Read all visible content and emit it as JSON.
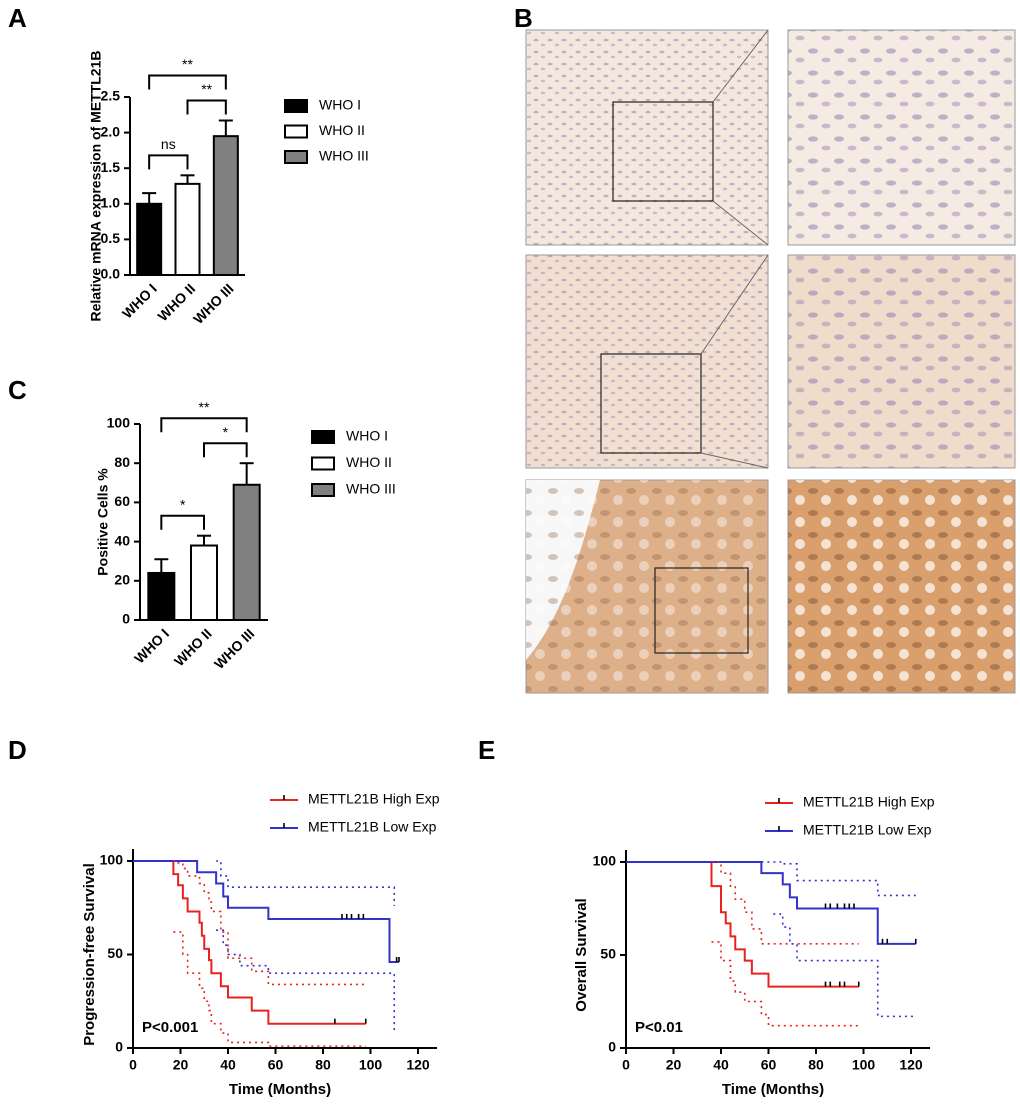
{
  "image_panel": {
    "label": "B"
  },
  "chart_data": [
    {
      "type": "bar",
      "panel": "A",
      "ylabel": "Relative mRNA expression of METTL21B",
      "categories": [
        "WHO I",
        "WHO II",
        "WHO III"
      ],
      "values": [
        1.0,
        1.28,
        1.95
      ],
      "errors": [
        0.15,
        0.12,
        0.22
      ],
      "colors": [
        "#000000",
        "#ffffff",
        "#808080"
      ],
      "ylim": [
        0,
        2.5
      ],
      "yticks": [
        {
          "value": 0,
          "label": "0.0"
        },
        0.5,
        {
          "value": 1,
          "label": "1.0"
        },
        1.5,
        {
          "value": 2,
          "label": "2.0"
        },
        2.5
      ],
      "comparisons": [
        {
          "groups": [
            0,
            1
          ],
          "label": "ns"
        },
        {
          "groups": [
            1,
            2
          ],
          "label": "**"
        },
        {
          "groups": [
            0,
            2
          ],
          "label": "**"
        }
      ]
    },
    {
      "type": "bar",
      "panel": "C",
      "ylabel": "Positive Cells %",
      "categories": [
        "WHO I",
        "WHO II",
        "WHO III"
      ],
      "values": [
        24,
        38,
        69
      ],
      "errors": [
        7,
        5,
        11
      ],
      "colors": [
        "#000000",
        "#ffffff",
        "#808080"
      ],
      "ylim": [
        0,
        100
      ],
      "yticks": [
        0,
        20,
        40,
        60,
        80,
        100
      ],
      "comparisons": [
        {
          "groups": [
            0,
            1
          ],
          "label": "*"
        },
        {
          "groups": [
            1,
            2
          ],
          "label": "*"
        },
        {
          "groups": [
            0,
            2
          ],
          "label": "**"
        }
      ]
    },
    {
      "type": "survival",
      "panel": "D",
      "ylabel": "Progression-free Survival",
      "xlabel": "Time (Months)",
      "annotation": "P<0.001",
      "xlim": [
        0,
        128
      ],
      "xticks": [
        0,
        20,
        40,
        60,
        80,
        100,
        120
      ],
      "ylim": [
        0,
        100
      ],
      "yticks": [
        0,
        50,
        100
      ],
      "series": [
        {
          "name": "METTL21B High Exp",
          "color": "#e8231e",
          "x": [
            0,
            17,
            19,
            21,
            23,
            28,
            29,
            30,
            32,
            33,
            37,
            40,
            50,
            57,
            98
          ],
          "values": [
            100,
            93,
            87,
            80,
            73,
            67,
            60,
            53,
            47,
            40,
            33,
            27,
            20,
            13,
            13
          ],
          "censor_x": [
            85,
            98
          ],
          "censor_values": [
            13,
            13
          ]
        },
        {
          "name": "METTL21B Low Exp",
          "color": "#3333cc",
          "x": [
            0,
            27,
            35,
            38,
            40,
            57,
            108,
            112
          ],
          "values": [
            100,
            94,
            88,
            81,
            75,
            69,
            46,
            46
          ],
          "censor_x": [
            88,
            90,
            92,
            95,
            97,
            111,
            112
          ],
          "censor_values": [
            69,
            69,
            69,
            69,
            69,
            46,
            46
          ]
        },
        {
          "color": "#e8231e",
          "style": "dotted",
          "x": [
            17,
            19,
            21,
            23,
            28,
            30,
            32,
            33,
            37,
            40,
            50,
            57,
            98
          ],
          "values": [
            100,
            99,
            96,
            92,
            88,
            83,
            78,
            73,
            62,
            48,
            41,
            34,
            34
          ]
        },
        {
          "color": "#e8231e",
          "style": "dotted",
          "x": [
            17,
            21,
            23,
            28,
            30,
            32,
            33,
            37,
            40,
            57,
            98
          ],
          "values": [
            62,
            50,
            40,
            32,
            25,
            20,
            13,
            8,
            3,
            1,
            1
          ]
        },
        {
          "color": "#3333cc",
          "style": "dotted",
          "x": [
            35,
            37,
            40,
            108,
            110
          ],
          "values": [
            100,
            92,
            86,
            86,
            76
          ]
        },
        {
          "color": "#3333cc",
          "style": "dotted",
          "x": [
            35,
            38,
            40,
            45,
            57,
            108,
            110
          ],
          "values": [
            63,
            55,
            50,
            44,
            40,
            40,
            9
          ]
        }
      ]
    },
    {
      "type": "survival",
      "panel": "E",
      "ylabel": "Overall Survival",
      "xlabel": "Time (Months)",
      "annotation": "P<0.01",
      "xlim": [
        0,
        128
      ],
      "xticks": [
        0,
        20,
        40,
        60,
        80,
        100,
        120
      ],
      "ylim": [
        0,
        100
      ],
      "yticks": [
        0,
        50,
        100
      ],
      "series": [
        {
          "name": "METTL21B High Exp",
          "color": "#e8231e",
          "x": [
            0,
            36,
            40,
            42,
            44,
            46,
            50,
            53,
            60,
            98
          ],
          "values": [
            100,
            87,
            73,
            67,
            60,
            53,
            47,
            40,
            33,
            33
          ],
          "censor_x": [
            84,
            86,
            90,
            92,
            98
          ],
          "censor_values": [
            33,
            33,
            33,
            33,
            33
          ]
        },
        {
          "name": "METTL21B Low Exp",
          "color": "#3333cc",
          "x": [
            0,
            57,
            66,
            69,
            72,
            106,
            122
          ],
          "values": [
            100,
            94,
            88,
            81,
            75,
            56,
            56
          ],
          "censor_x": [
            84,
            86,
            89,
            92,
            94,
            96,
            108,
            110,
            122
          ],
          "censor_values": [
            75,
            75,
            75,
            75,
            75,
            75,
            56,
            56,
            56
          ]
        },
        {
          "color": "#e8231e",
          "style": "dotted",
          "x": [
            36,
            40,
            44,
            46,
            50,
            53,
            57,
            98
          ],
          "values": [
            100,
            94,
            87,
            80,
            73,
            64,
            56,
            56
          ]
        },
        {
          "color": "#e8231e",
          "style": "dotted",
          "x": [
            36,
            40,
            44,
            46,
            50,
            57,
            60,
            98
          ],
          "values": [
            57,
            47,
            36,
            30,
            25,
            18,
            12,
            12
          ]
        },
        {
          "color": "#3333cc",
          "style": "dotted",
          "x": [
            57,
            66,
            72,
            106,
            122
          ],
          "values": [
            100,
            99,
            90,
            82,
            82
          ]
        },
        {
          "color": "#3333cc",
          "style": "dotted",
          "x": [
            62,
            66,
            69,
            72,
            106,
            122
          ],
          "values": [
            72,
            65,
            56,
            47,
            17,
            17
          ]
        }
      ]
    }
  ]
}
